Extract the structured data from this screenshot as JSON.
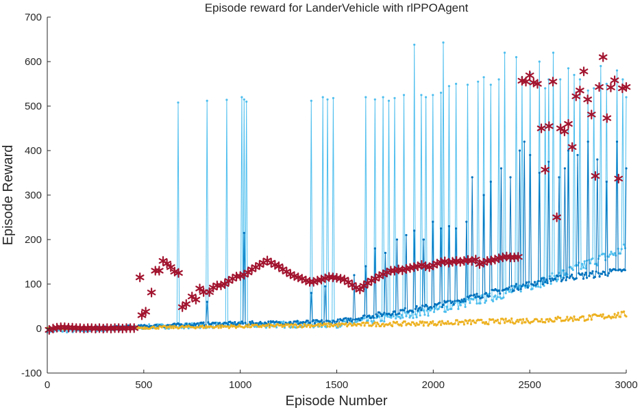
{
  "chart_data": {
    "type": "line",
    "title": "Episode reward for LanderVehicle with rlPPOAgent",
    "xlabel": "Episode Number",
    "ylabel": "Episode Reward",
    "xlim": [
      0,
      3000
    ],
    "ylim": [
      -100,
      700
    ],
    "xticks": [
      0,
      500,
      1000,
      1500,
      2000,
      2500,
      3000
    ],
    "yticks": [
      -100,
      0,
      100,
      200,
      300,
      400,
      500,
      600,
      700
    ],
    "grid": false,
    "legend": "none",
    "series": [
      {
        "style": "line-dot",
        "color": "#4DBEEE",
        "baseline": [
          [
            0,
            -5
          ],
          [
            150,
            -5
          ],
          [
            300,
            -2
          ],
          [
            450,
            0
          ],
          [
            500,
            4
          ],
          [
            700,
            6
          ],
          [
            1000,
            8
          ],
          [
            1500,
            10
          ],
          [
            1700,
            20
          ],
          [
            2000,
            40
          ],
          [
            2300,
            70
          ],
          [
            2600,
            110
          ],
          [
            3000,
            180
          ]
        ],
        "spikes": [
          [
            680,
            508
          ],
          [
            830,
            512
          ],
          [
            930,
            514
          ],
          [
            1010,
            520
          ],
          [
            1020,
            515
          ],
          [
            1030,
            510
          ],
          [
            1370,
            512
          ],
          [
            1430,
            520
          ],
          [
            1450,
            515
          ],
          [
            1480,
            518
          ],
          [
            1650,
            520
          ],
          [
            1700,
            515
          ],
          [
            1740,
            520
          ],
          [
            1770,
            512
          ],
          [
            1800,
            518
          ],
          [
            1850,
            525
          ],
          [
            1900,
            638
          ],
          [
            1940,
            525
          ],
          [
            1960,
            520
          ],
          [
            2000,
            525
          ],
          [
            2040,
            530
          ],
          [
            2050,
            643
          ],
          [
            2080,
            545
          ],
          [
            2120,
            550
          ],
          [
            2180,
            548
          ],
          [
            2230,
            555
          ],
          [
            2260,
            565
          ],
          [
            2300,
            548
          ],
          [
            2340,
            560
          ],
          [
            2370,
            620
          ],
          [
            2430,
            610
          ],
          [
            2460,
            565
          ],
          [
            2500,
            575
          ],
          [
            2550,
            600
          ],
          [
            2580,
            540
          ],
          [
            2600,
            560
          ],
          [
            2620,
            620
          ],
          [
            2660,
            560
          ],
          [
            2700,
            585
          ],
          [
            2730,
            570
          ],
          [
            2760,
            560
          ],
          [
            2800,
            535
          ],
          [
            2830,
            540
          ],
          [
            2870,
            590
          ],
          [
            2900,
            550
          ],
          [
            2950,
            580
          ],
          [
            2980,
            560
          ],
          [
            3000,
            520
          ]
        ]
      },
      {
        "style": "line-dot",
        "color": "#0072BD",
        "baseline": [
          [
            0,
            0
          ],
          [
            300,
            2
          ],
          [
            500,
            5
          ],
          [
            800,
            10
          ],
          [
            1100,
            12
          ],
          [
            1500,
            15
          ],
          [
            1700,
            30
          ],
          [
            2000,
            50
          ],
          [
            2300,
            80
          ],
          [
            2600,
            110
          ],
          [
            3000,
            130
          ]
        ],
        "spikes": [
          [
            830,
            60
          ],
          [
            1020,
            215
          ],
          [
            1370,
            80
          ],
          [
            1440,
            95
          ],
          [
            1590,
            120
          ],
          [
            1650,
            140
          ],
          [
            1700,
            180
          ],
          [
            1750,
            170
          ],
          [
            1810,
            200
          ],
          [
            1860,
            210
          ],
          [
            1900,
            220
          ],
          [
            1950,
            200
          ],
          [
            2000,
            240
          ],
          [
            2040,
            225
          ],
          [
            2080,
            230
          ],
          [
            2120,
            225
          ],
          [
            2170,
            240
          ],
          [
            2200,
            340
          ],
          [
            2260,
            300
          ],
          [
            2300,
            330
          ],
          [
            2350,
            360
          ],
          [
            2400,
            340
          ],
          [
            2450,
            400
          ],
          [
            2470,
            420
          ],
          [
            2500,
            390
          ],
          [
            2550,
            350
          ],
          [
            2600,
            375
          ],
          [
            2650,
            340
          ],
          [
            2680,
            360
          ],
          [
            2700,
            400
          ],
          [
            2750,
            390
          ],
          [
            2800,
            420
          ],
          [
            2850,
            380
          ],
          [
            2900,
            330
          ],
          [
            2950,
            420
          ],
          [
            3000,
            360
          ]
        ]
      },
      {
        "style": "line-dot",
        "color": "#EDB120",
        "baseline": [
          [
            0,
            0
          ],
          [
            500,
            2
          ],
          [
            1000,
            5
          ],
          [
            1500,
            8
          ],
          [
            2000,
            12
          ],
          [
            2500,
            18
          ],
          [
            2800,
            24
          ],
          [
            3000,
            32
          ]
        ]
      },
      {
        "style": "marker-asterisk",
        "color": "#A2142F",
        "points": [
          [
            10,
            -3
          ],
          [
            30,
            0
          ],
          [
            50,
            2
          ],
          [
            70,
            3
          ],
          [
            90,
            3
          ],
          [
            110,
            2
          ],
          [
            130,
            2
          ],
          [
            150,
            1
          ],
          [
            170,
            1
          ],
          [
            190,
            0
          ],
          [
            210,
            1
          ],
          [
            230,
            1
          ],
          [
            250,
            0
          ],
          [
            270,
            1
          ],
          [
            290,
            0
          ],
          [
            310,
            1
          ],
          [
            330,
            0
          ],
          [
            350,
            1
          ],
          [
            370,
            1
          ],
          [
            390,
            0
          ],
          [
            410,
            1
          ],
          [
            430,
            1
          ],
          [
            450,
            1
          ],
          [
            480,
            115
          ],
          [
            490,
            30
          ],
          [
            510,
            38
          ],
          [
            540,
            81
          ],
          [
            560,
            130
          ],
          [
            580,
            130
          ],
          [
            600,
            152
          ],
          [
            620,
            146
          ],
          [
            640,
            138
          ],
          [
            660,
            128
          ],
          [
            680,
            125
          ],
          [
            700,
            48
          ],
          [
            720,
            55
          ],
          [
            750,
            72
          ],
          [
            770,
            65
          ],
          [
            790,
            90
          ],
          [
            810,
            82
          ],
          [
            840,
            82
          ],
          [
            860,
            92
          ],
          [
            880,
            97
          ],
          [
            900,
            97
          ],
          [
            920,
            100
          ],
          [
            940,
            107
          ],
          [
            960,
            112
          ],
          [
            980,
            117
          ],
          [
            1000,
            118
          ],
          [
            1020,
            121
          ],
          [
            1040,
            126
          ],
          [
            1060,
            133
          ],
          [
            1080,
            138
          ],
          [
            1100,
            143
          ],
          [
            1120,
            148
          ],
          [
            1140,
            153
          ],
          [
            1160,
            148
          ],
          [
            1180,
            143
          ],
          [
            1200,
            140
          ],
          [
            1220,
            133
          ],
          [
            1240,
            128
          ],
          [
            1260,
            122
          ],
          [
            1280,
            118
          ],
          [
            1300,
            115
          ],
          [
            1320,
            112
          ],
          [
            1340,
            108
          ],
          [
            1360,
            105
          ],
          [
            1380,
            105
          ],
          [
            1400,
            108
          ],
          [
            1420,
            110
          ],
          [
            1440,
            113
          ],
          [
            1460,
            116
          ],
          [
            1480,
            115
          ],
          [
            1500,
            114
          ],
          [
            1520,
            112
          ],
          [
            1540,
            110
          ],
          [
            1560,
            104
          ],
          [
            1580,
            98
          ],
          [
            1600,
            92
          ],
          [
            1620,
            88
          ],
          [
            1640,
            96
          ],
          [
            1660,
            102
          ],
          [
            1680,
            108
          ],
          [
            1700,
            112
          ],
          [
            1720,
            118
          ],
          [
            1740,
            122
          ],
          [
            1760,
            126
          ],
          [
            1780,
            130
          ],
          [
            1800,
            130
          ],
          [
            1820,
            133
          ],
          [
            1840,
            131
          ],
          [
            1860,
            134
          ],
          [
            1880,
            136
          ],
          [
            1900,
            138
          ],
          [
            1920,
            140
          ],
          [
            1940,
            143
          ],
          [
            1960,
            140
          ],
          [
            1980,
            138
          ],
          [
            2000,
            142
          ],
          [
            2020,
            146
          ],
          [
            2040,
            149
          ],
          [
            2060,
            151
          ],
          [
            2080,
            148
          ],
          [
            2100,
            150
          ],
          [
            2120,
            152
          ],
          [
            2140,
            150
          ],
          [
            2160,
            152
          ],
          [
            2180,
            154
          ],
          [
            2200,
            152
          ],
          [
            2220,
            155
          ],
          [
            2240,
            145
          ],
          [
            2260,
            148
          ],
          [
            2280,
            152
          ],
          [
            2300,
            153
          ],
          [
            2320,
            155
          ],
          [
            2340,
            158
          ],
          [
            2360,
            160
          ],
          [
            2380,
            162
          ],
          [
            2400,
            160
          ],
          [
            2420,
            160
          ],
          [
            2440,
            161
          ],
          [
            2460,
            557
          ],
          [
            2480,
            555
          ],
          [
            2500,
            569
          ],
          [
            2520,
            553
          ],
          [
            2540,
            550
          ],
          [
            2560,
            450
          ],
          [
            2580,
            357
          ],
          [
            2600,
            455
          ],
          [
            2620,
            555
          ],
          [
            2640,
            250
          ],
          [
            2660,
            450
          ],
          [
            2680,
            443
          ],
          [
            2700,
            460
          ],
          [
            2720,
            408
          ],
          [
            2740,
            522
          ],
          [
            2760,
            535
          ],
          [
            2780,
            578
          ],
          [
            2800,
            515
          ],
          [
            2820,
            481
          ],
          [
            2840,
            343
          ],
          [
            2860,
            543
          ],
          [
            2880,
            610
          ],
          [
            2900,
            473
          ],
          [
            2920,
            542
          ],
          [
            2940,
            558
          ],
          [
            2960,
            337
          ],
          [
            2980,
            540
          ],
          [
            3000,
            543
          ]
        ]
      }
    ]
  }
}
